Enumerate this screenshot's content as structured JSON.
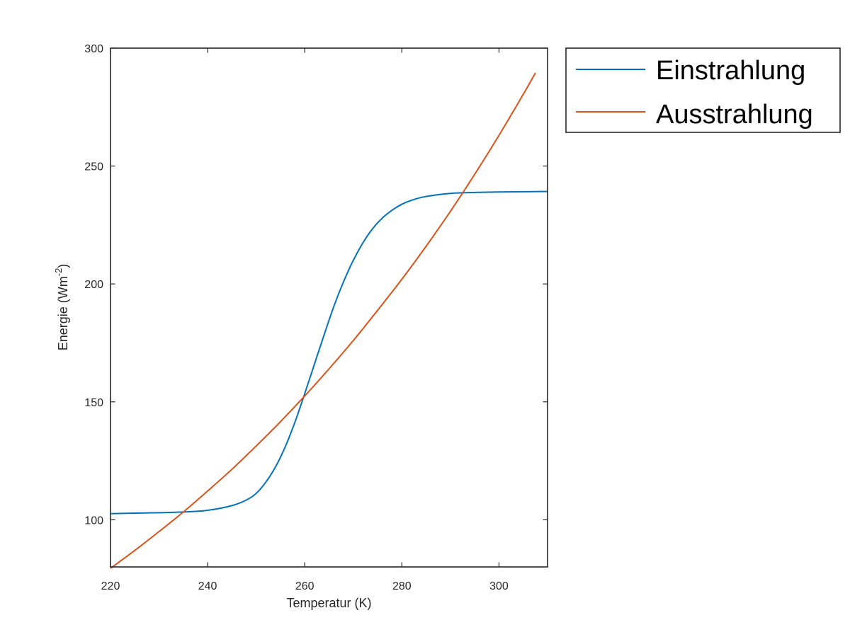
{
  "chart_data": {
    "type": "line",
    "xlabel": "Temperatur (K)",
    "ylabel": {
      "base": "Energie (Wm",
      "exponent": "-2",
      "close": ")"
    },
    "xlim": [
      220,
      310
    ],
    "ylim": [
      80,
      300
    ],
    "xticks": [
      220,
      240,
      260,
      280,
      300
    ],
    "yticks": [
      100,
      150,
      200,
      250,
      300
    ],
    "grid": false,
    "legend_position": "outside top-right",
    "series": [
      {
        "name": "Einstrahlung",
        "color": "#0072BD",
        "x": [
          220,
          225,
          230,
          235,
          240,
          245,
          248,
          250,
          252,
          254,
          256,
          258,
          260,
          262,
          264,
          266,
          268,
          270,
          272,
          274,
          276,
          278,
          280,
          282,
          285,
          290,
          295,
          300,
          305,
          310
        ],
        "y": [
          102.6,
          102.8,
          103.0,
          103.3,
          104.0,
          106.0,
          108.4,
          111.2,
          116.0,
          122.5,
          131.0,
          141.5,
          153.5,
          166.0,
          178.5,
          190.5,
          201.0,
          210.0,
          217.5,
          223.5,
          228.0,
          231.3,
          233.8,
          235.5,
          237.1,
          238.4,
          238.8,
          239.0,
          239.1,
          239.2
        ]
      },
      {
        "name": "Ausstrahlung",
        "color": "#D95319",
        "x": [
          220,
          225,
          230,
          235,
          240,
          245,
          250,
          255,
          260,
          265,
          270,
          275,
          280,
          285,
          290,
          295,
          300,
          305,
          307.5
        ],
        "y": [
          79.4,
          87.0,
          95.0,
          103.3,
          112.2,
          121.4,
          131.3,
          141.6,
          152.5,
          164.0,
          176.0,
          188.8,
          202.0,
          216.0,
          230.8,
          246.5,
          263.0,
          280.4,
          289.5
        ]
      }
    ]
  }
}
